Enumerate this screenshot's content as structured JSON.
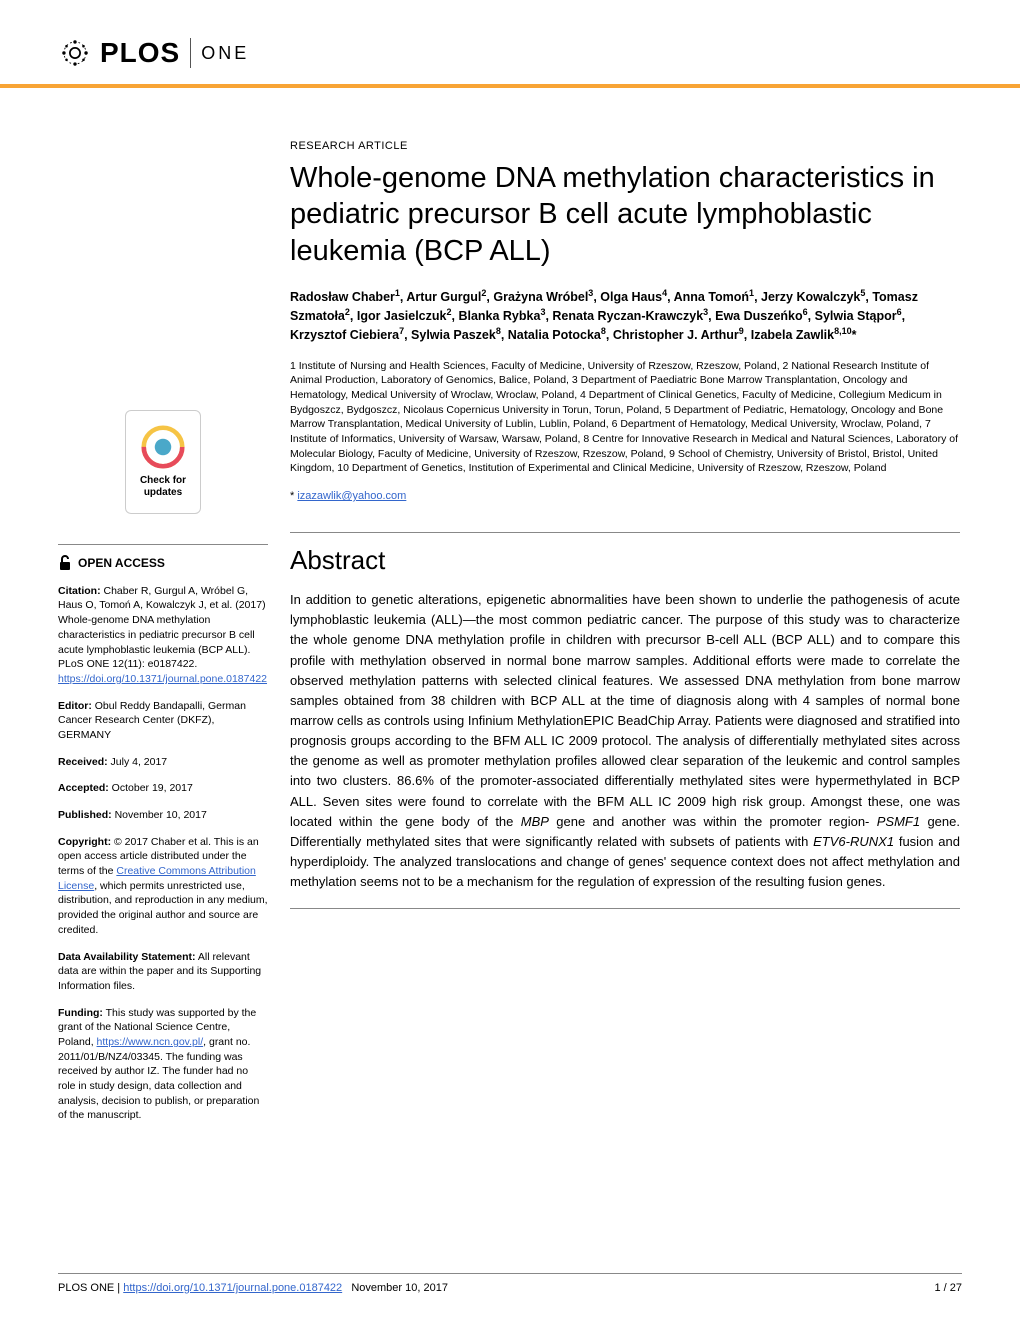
{
  "colors": {
    "accent": "#f8a435",
    "link": "#3366cc",
    "text": "#000000",
    "divider": "#888888",
    "check_outer": "#f6c445",
    "check_inner": "#e74b5b",
    "check_center": "#4aa8c9"
  },
  "header": {
    "logo_text": "PLOS",
    "journal": "ONE"
  },
  "article": {
    "type": "RESEARCH ARTICLE",
    "title": "Whole-genome DNA methylation characteristics in pediatric precursor B cell acute lymphoblastic leukemia (BCP ALL)",
    "authors_html": "Radosław Chaber<sup>1</sup>, Artur Gurgul<sup>2</sup>, Grażyna Wróbel<sup>3</sup>, Olga Haus<sup>4</sup>, Anna Tomoń<sup>1</sup>, Jerzy Kowalczyk<sup>5</sup>, Tomasz Szmatoła<sup>2</sup>, Igor Jasielczuk<sup>2</sup>, Blanka Rybka<sup>3</sup>, Renata Ryczan-Krawczyk<sup>3</sup>, Ewa Duszeńko<sup>6</sup>, Sylwia Stąpor<sup>6</sup>, Krzysztof Ciebiera<sup>7</sup>, Sylwia Paszek<sup>8</sup>, Natalia Potocka<sup>8</sup>, Christopher J. Arthur<sup>9</sup>, Izabela Zawlik<sup>8,10</sup>*",
    "affiliations": "1 Institute of Nursing and Health Sciences, Faculty of Medicine, University of Rzeszow, Rzeszow, Poland, 2 National Research Institute of Animal Production, Laboratory of Genomics, Balice, Poland, 3 Department of Paediatric Bone Marrow Transplantation, Oncology and Hematology, Medical University of Wroclaw, Wroclaw, Poland, 4 Department of Clinical Genetics, Faculty of Medicine, Collegium Medicum in Bydgoszcz, Bydgoszcz, Nicolaus Copernicus University in Torun, Torun, Poland, 5 Department of Pediatric, Hematology, Oncology and Bone Marrow Transplantation, Medical University of Lublin, Lublin, Poland, 6 Department of Hematology, Medical University, Wroclaw, Poland, 7 Institute of Informatics, University of Warsaw, Warsaw, Poland, 8 Centre for Innovative Research in Medical and Natural Sciences, Laboratory of Molecular Biology, Faculty of Medicine, University of Rzeszow, Rzeszow, Poland, 9 School of Chemistry, University of Bristol, Bristol, United Kingdom, 10 Department of Genetics, Institution of Experimental and Clinical Medicine, University of Rzeszow, Rzeszow, Poland",
    "correspondence_prefix": "* ",
    "correspondence_email": "izazawlik@yahoo.com",
    "abstract_heading": "Abstract",
    "abstract_html": "In addition to genetic alterations, epigenetic abnormalities have been shown to underlie the pathogenesis of acute lymphoblastic leukemia (ALL)—the most common pediatric cancer. The purpose of this study was to characterize the whole genome DNA methylation profile in children with precursor B-cell ALL (BCP ALL) and to compare this profile with methylation observed in normal bone marrow samples. Additional efforts were made to correlate the observed methylation patterns with selected clinical features. We assessed DNA methylation from bone marrow samples obtained from 38 children with BCP ALL at the time of diagnosis along with 4 samples of normal bone marrow cells as controls using Infinium MethylationEPIC BeadChip Array. Patients were diagnosed and stratified into prognosis groups according to the BFM ALL IC 2009 protocol. The analysis of differentially methylated sites across the genome as well as promoter methylation profiles allowed clear separation of the leukemic and control samples into two clusters. 86.6% of the promoter-associated differentially methylated sites were hypermethylated in BCP ALL. Seven sites were found to correlate with the BFM ALL IC 2009 high risk group. Amongst these, one was located within the gene body of the <em>MBP</em> gene and another was within the promoter region- <em>PSMF1</em> gene. Differentially methylated sites that were significantly related with subsets of patients with <em>ETV6-RUNX1</em> fusion and hyperdiploidy. The analyzed translocations and change of genes' sequence context does not affect methylation and methylation seems not to be a mechanism for the regulation of expression of the resulting fusion genes."
  },
  "sidebar": {
    "check_line1": "Check for",
    "check_line2": "updates",
    "open_access": "OPEN ACCESS",
    "citation_label": "Citation:",
    "citation_text": " Chaber R, Gurgul A, Wróbel G, Haus O, Tomoń A, Kowalczyk J, et al. (2017) Whole-genome DNA methylation characteristics in pediatric precursor B cell acute lymphoblastic leukemia (BCP ALL). PLoS ONE 12(11): e0187422. ",
    "citation_link": "https://doi.org/10.1371/journal.pone.0187422",
    "editor_label": "Editor:",
    "editor_text": " Obul Reddy Bandapalli, German Cancer Research Center (DKFZ), GERMANY",
    "received_label": "Received:",
    "received_text": " July 4, 2017",
    "accepted_label": "Accepted:",
    "accepted_text": " October 19, 2017",
    "published_label": "Published:",
    "published_text": " November 10, 2017",
    "copyright_label": "Copyright:",
    "copyright_text": " © 2017 Chaber et al. This is an open access article distributed under the terms of the ",
    "copyright_link_text": "Creative Commons Attribution License",
    "copyright_text2": ", which permits unrestricted use, distribution, and reproduction in any medium, provided the original author and source are credited.",
    "data_label": "Data Availability Statement:",
    "data_text": " All relevant data are within the paper and its Supporting Information files.",
    "funding_label": "Funding:",
    "funding_text1": " This study was supported by the grant of the National Science Centre, Poland, ",
    "funding_link": "https://www.ncn.gov.pl/",
    "funding_text2": ", grant no. 2011/01/B/NZ4/03345. The funding was received by author IZ. The funder had no role in study design, data collection and analysis, decision to publish, or preparation of the manuscript."
  },
  "footer": {
    "journal": "PLOS ONE | ",
    "doi": "https://doi.org/10.1371/journal.pone.0187422",
    "date": "November 10, 2017",
    "page": "1 / 27"
  }
}
